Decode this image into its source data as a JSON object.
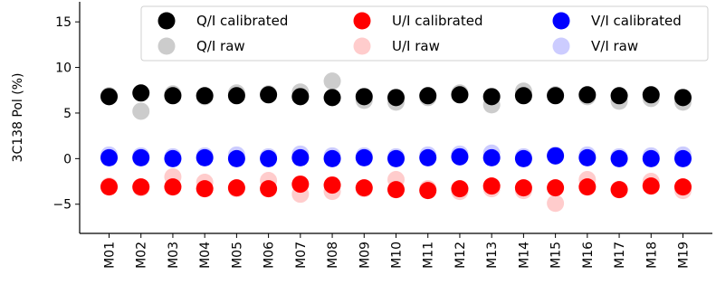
{
  "chart_data": {
    "type": "scatter",
    "ylabel": "3C138 Pol (%)",
    "ylim": [
      -8.2,
      17.2
    ],
    "yticks": [
      -5,
      0,
      5,
      10,
      15
    ],
    "categories": [
      "M01",
      "M02",
      "M03",
      "M04",
      "M05",
      "M06",
      "M07",
      "M08",
      "M09",
      "M10",
      "M11",
      "M12",
      "M13",
      "M14",
      "M15",
      "M16",
      "M17",
      "M18",
      "M19"
    ],
    "series": [
      {
        "name": "Q/I raw",
        "color": "#cccccc",
        "kind": "raw",
        "values": [
          6.9,
          5.2,
          7.1,
          6.8,
          7.2,
          7.1,
          7.3,
          8.5,
          6.4,
          6.2,
          6.7,
          7.2,
          5.9,
          7.4,
          7.0,
          6.8,
          6.3,
          6.6,
          6.2
        ]
      },
      {
        "name": "U/I raw",
        "color": "#ffcccc",
        "kind": "raw",
        "values": [
          -3.0,
          -3.2,
          -2.0,
          -2.6,
          -3.3,
          -2.4,
          -3.9,
          -3.6,
          -3.3,
          -2.3,
          -3.3,
          -3.6,
          -3.3,
          -3.5,
          -4.9,
          -2.3,
          -3.4,
          -2.5,
          -3.5
        ]
      },
      {
        "name": "V/I raw",
        "color": "#ccccff",
        "kind": "raw",
        "values": [
          0.4,
          0.3,
          0.2,
          0.3,
          0.4,
          0.2,
          0.5,
          0.3,
          0.3,
          0.2,
          0.4,
          0.5,
          0.6,
          0.2,
          0.4,
          0.4,
          0.2,
          0.3,
          0.4
        ]
      },
      {
        "name": "Q/I calibrated",
        "color": "#000000",
        "kind": "cal",
        "values": [
          6.8,
          7.2,
          6.9,
          6.9,
          6.9,
          7.0,
          6.8,
          6.7,
          6.8,
          6.7,
          6.9,
          7.0,
          6.8,
          6.9,
          6.9,
          7.0,
          6.9,
          7.0,
          6.7
        ]
      },
      {
        "name": "U/I calibrated",
        "color": "#ff0000",
        "kind": "cal",
        "values": [
          -3.1,
          -3.1,
          -3.1,
          -3.3,
          -3.2,
          -3.3,
          -2.8,
          -2.9,
          -3.2,
          -3.4,
          -3.5,
          -3.3,
          -3.0,
          -3.2,
          -3.2,
          -3.1,
          -3.4,
          -3.0,
          -3.1
        ]
      },
      {
        "name": "V/I calibrated",
        "color": "#0000ff",
        "kind": "cal",
        "values": [
          0.1,
          0.1,
          0.0,
          0.1,
          0.0,
          0.0,
          0.1,
          0.0,
          0.1,
          0.0,
          0.1,
          0.2,
          0.1,
          0.0,
          0.3,
          0.1,
          0.0,
          0.0,
          0.0
        ]
      }
    ],
    "legend": {
      "placement": "top-right",
      "order": [
        "Q/I calibrated",
        "U/I calibrated",
        "V/I calibrated",
        "Q/I raw",
        "U/I raw",
        "V/I raw"
      ]
    }
  }
}
